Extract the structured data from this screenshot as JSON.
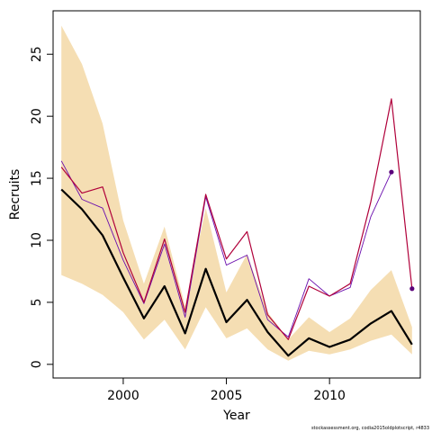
{
  "chart_data": {
    "type": "line",
    "xlabel": "Year",
    "ylabel": "Recruits",
    "xlim": [
      1996.6,
      2014.4
    ],
    "ylim": [
      -1.1,
      28.5
    ],
    "x_ticks": [
      2000,
      2005,
      2010
    ],
    "y_ticks": [
      0,
      5,
      10,
      15,
      20,
      25
    ],
    "grid": false,
    "legend": "none",
    "x": [
      1997,
      1998,
      1999,
      2000,
      2001,
      2002,
      2003,
      2004,
      2005,
      2006,
      2007,
      2008,
      2009,
      2010,
      2011,
      2012,
      2013,
      2014
    ],
    "band": {
      "lower": [
        7.2,
        6.5,
        5.6,
        4.2,
        2.0,
        3.6,
        1.2,
        4.6,
        2.1,
        2.9,
        1.2,
        0.3,
        1.1,
        0.8,
        1.2,
        1.9,
        2.4,
        0.8
      ],
      "upper": [
        27.3,
        24.2,
        19.4,
        11.6,
        6.5,
        11.1,
        4.7,
        12.6,
        5.8,
        8.9,
        4.2,
        2.0,
        3.8,
        2.6,
        3.7,
        6.0,
        7.6,
        3.0
      ],
      "color": "#f5deb3"
    },
    "series": [
      {
        "values": [
          14.1,
          12.5,
          10.4,
          7.0,
          3.7,
          6.3,
          2.5,
          7.7,
          3.4,
          5.2,
          2.6,
          0.7,
          2.1,
          1.4,
          2.0,
          3.3,
          4.3,
          1.6
        ],
        "color": "#000000",
        "width": 2.2
      },
      {
        "values": [
          16.4,
          13.3,
          12.6,
          8.4,
          4.9,
          9.7,
          3.8,
          13.5,
          8.0,
          8.8,
          3.6,
          2.2,
          6.9,
          5.5,
          6.2,
          11.9,
          15.5,
          null
        ],
        "color": "#6a0dad",
        "width": 0.9,
        "end_point": true
      },
      {
        "values": [
          15.9,
          13.8,
          14.3,
          9.0,
          5.0,
          10.1,
          4.2,
          13.7,
          8.5,
          10.7,
          4.0,
          2.0,
          6.3,
          5.5,
          6.5,
          13.1,
          21.4,
          6.1
        ],
        "color": "#b0003a",
        "width": 1.2,
        "end_point": true
      }
    ],
    "end_point_color": "#5a007a"
  },
  "footer": "stockassessment.org,  codia2015oldplotscript, r4833"
}
